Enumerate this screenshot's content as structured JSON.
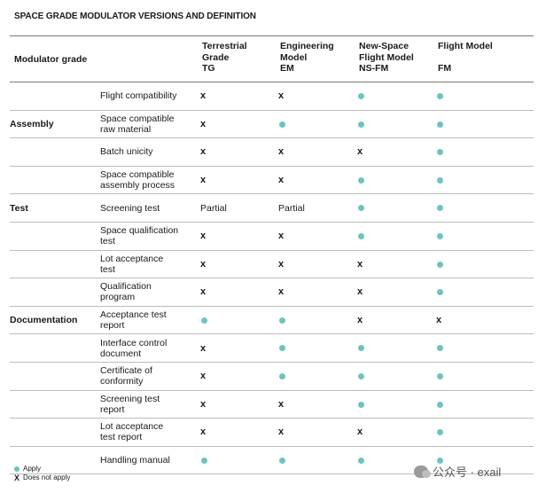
{
  "title": "SPACE GRADE MODULATOR VERSIONS AND DEFINITION",
  "header": {
    "grade_label": "Modulator grade",
    "columns": [
      {
        "lines": [
          "Terrestrial",
          "Grade",
          "TG"
        ]
      },
      {
        "lines": [
          "Engineering",
          "Model",
          "EM"
        ]
      },
      {
        "lines": [
          "New-Space",
          "Flight Model",
          "NS-FM"
        ]
      },
      {
        "lines": [
          "Flight Model",
          "",
          "FM"
        ]
      }
    ]
  },
  "rows": [
    {
      "group": "",
      "item": [
        "Flight compatibility"
      ],
      "values": [
        "x",
        "x",
        "dot",
        "dot"
      ]
    },
    {
      "group": "Assembly",
      "item": [
        "Space compatible",
        "raw material"
      ],
      "values": [
        "x",
        "dot",
        "dot",
        "dot"
      ]
    },
    {
      "group": "",
      "item": [
        "Batch unicity"
      ],
      "values": [
        "x",
        "x",
        "x",
        "dot"
      ]
    },
    {
      "group": "",
      "item": [
        "Space compatible",
        "assembly process"
      ],
      "values": [
        "x",
        "x",
        "dot",
        "dot"
      ]
    },
    {
      "group": "Test",
      "item": [
        "Screening test"
      ],
      "values": [
        "Partial",
        "Partial",
        "dot",
        "dot"
      ]
    },
    {
      "group": "",
      "item": [
        "Space qualification",
        "test"
      ],
      "values": [
        "x",
        "x",
        "dot",
        "dot"
      ]
    },
    {
      "group": "",
      "item": [
        "Lot acceptance",
        "test"
      ],
      "values": [
        "x",
        "x",
        "x",
        "dot"
      ]
    },
    {
      "group": "",
      "item": [
        "Qualification",
        "program"
      ],
      "values": [
        "x",
        "x",
        "x",
        "dot"
      ]
    },
    {
      "group": "Documentation",
      "item": [
        "Acceptance test",
        "report"
      ],
      "values": [
        "dot",
        "dot",
        "x",
        "x"
      ]
    },
    {
      "group": "",
      "item": [
        "Interface control",
        "document"
      ],
      "values": [
        "x",
        "dot",
        "dot",
        "dot"
      ]
    },
    {
      "group": "",
      "item": [
        "Certificate of",
        "conformity"
      ],
      "values": [
        "x",
        "dot",
        "dot",
        "dot"
      ]
    },
    {
      "group": "",
      "item": [
        "Screening test",
        "report"
      ],
      "values": [
        "x",
        "x",
        "dot",
        "dot"
      ]
    },
    {
      "group": "",
      "item": [
        "Lot acceptance",
        "test report"
      ],
      "values": [
        "x",
        "x",
        "x",
        "dot"
      ]
    },
    {
      "group": "",
      "item": [
        "Handling manual"
      ],
      "values": [
        "dot",
        "dot",
        "dot",
        "dot"
      ]
    }
  ],
  "legend": {
    "apply": "Apply",
    "not_apply": "Does not apply",
    "cross_symbol": "X"
  },
  "watermark": {
    "text": "公众号 · exail"
  },
  "colors": {
    "dot": "#6fc3be",
    "rule": "#bdbdbd"
  }
}
